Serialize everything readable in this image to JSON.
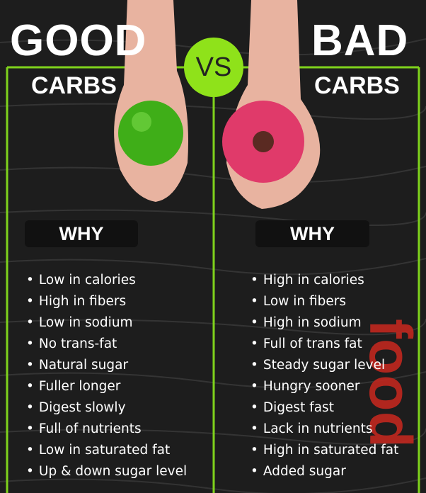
{
  "center": "VS",
  "left": {
    "title": "GOOD",
    "subtitle": "CARBS",
    "heading": "WHY",
    "items": [
      "Low in calories",
      "High in fibers",
      "Low in sodium",
      "No trans-fat",
      "Natural sugar",
      "Fuller longer",
      "Digest slowly",
      "Full of nutrients",
      "Low in saturated fat",
      "Up & down sugar level"
    ]
  },
  "right": {
    "title": "BAD",
    "subtitle": "CARBS",
    "heading": "WHY",
    "items": [
      "High in calories",
      "Low in fibers",
      "High in sodium",
      "Full of trans fat",
      "Steady sugar level",
      "Hungry sooner",
      "Digest fast",
      "Lack in nutrients",
      "High in saturated fat",
      "Added sugar"
    ]
  },
  "watermark": "food"
}
